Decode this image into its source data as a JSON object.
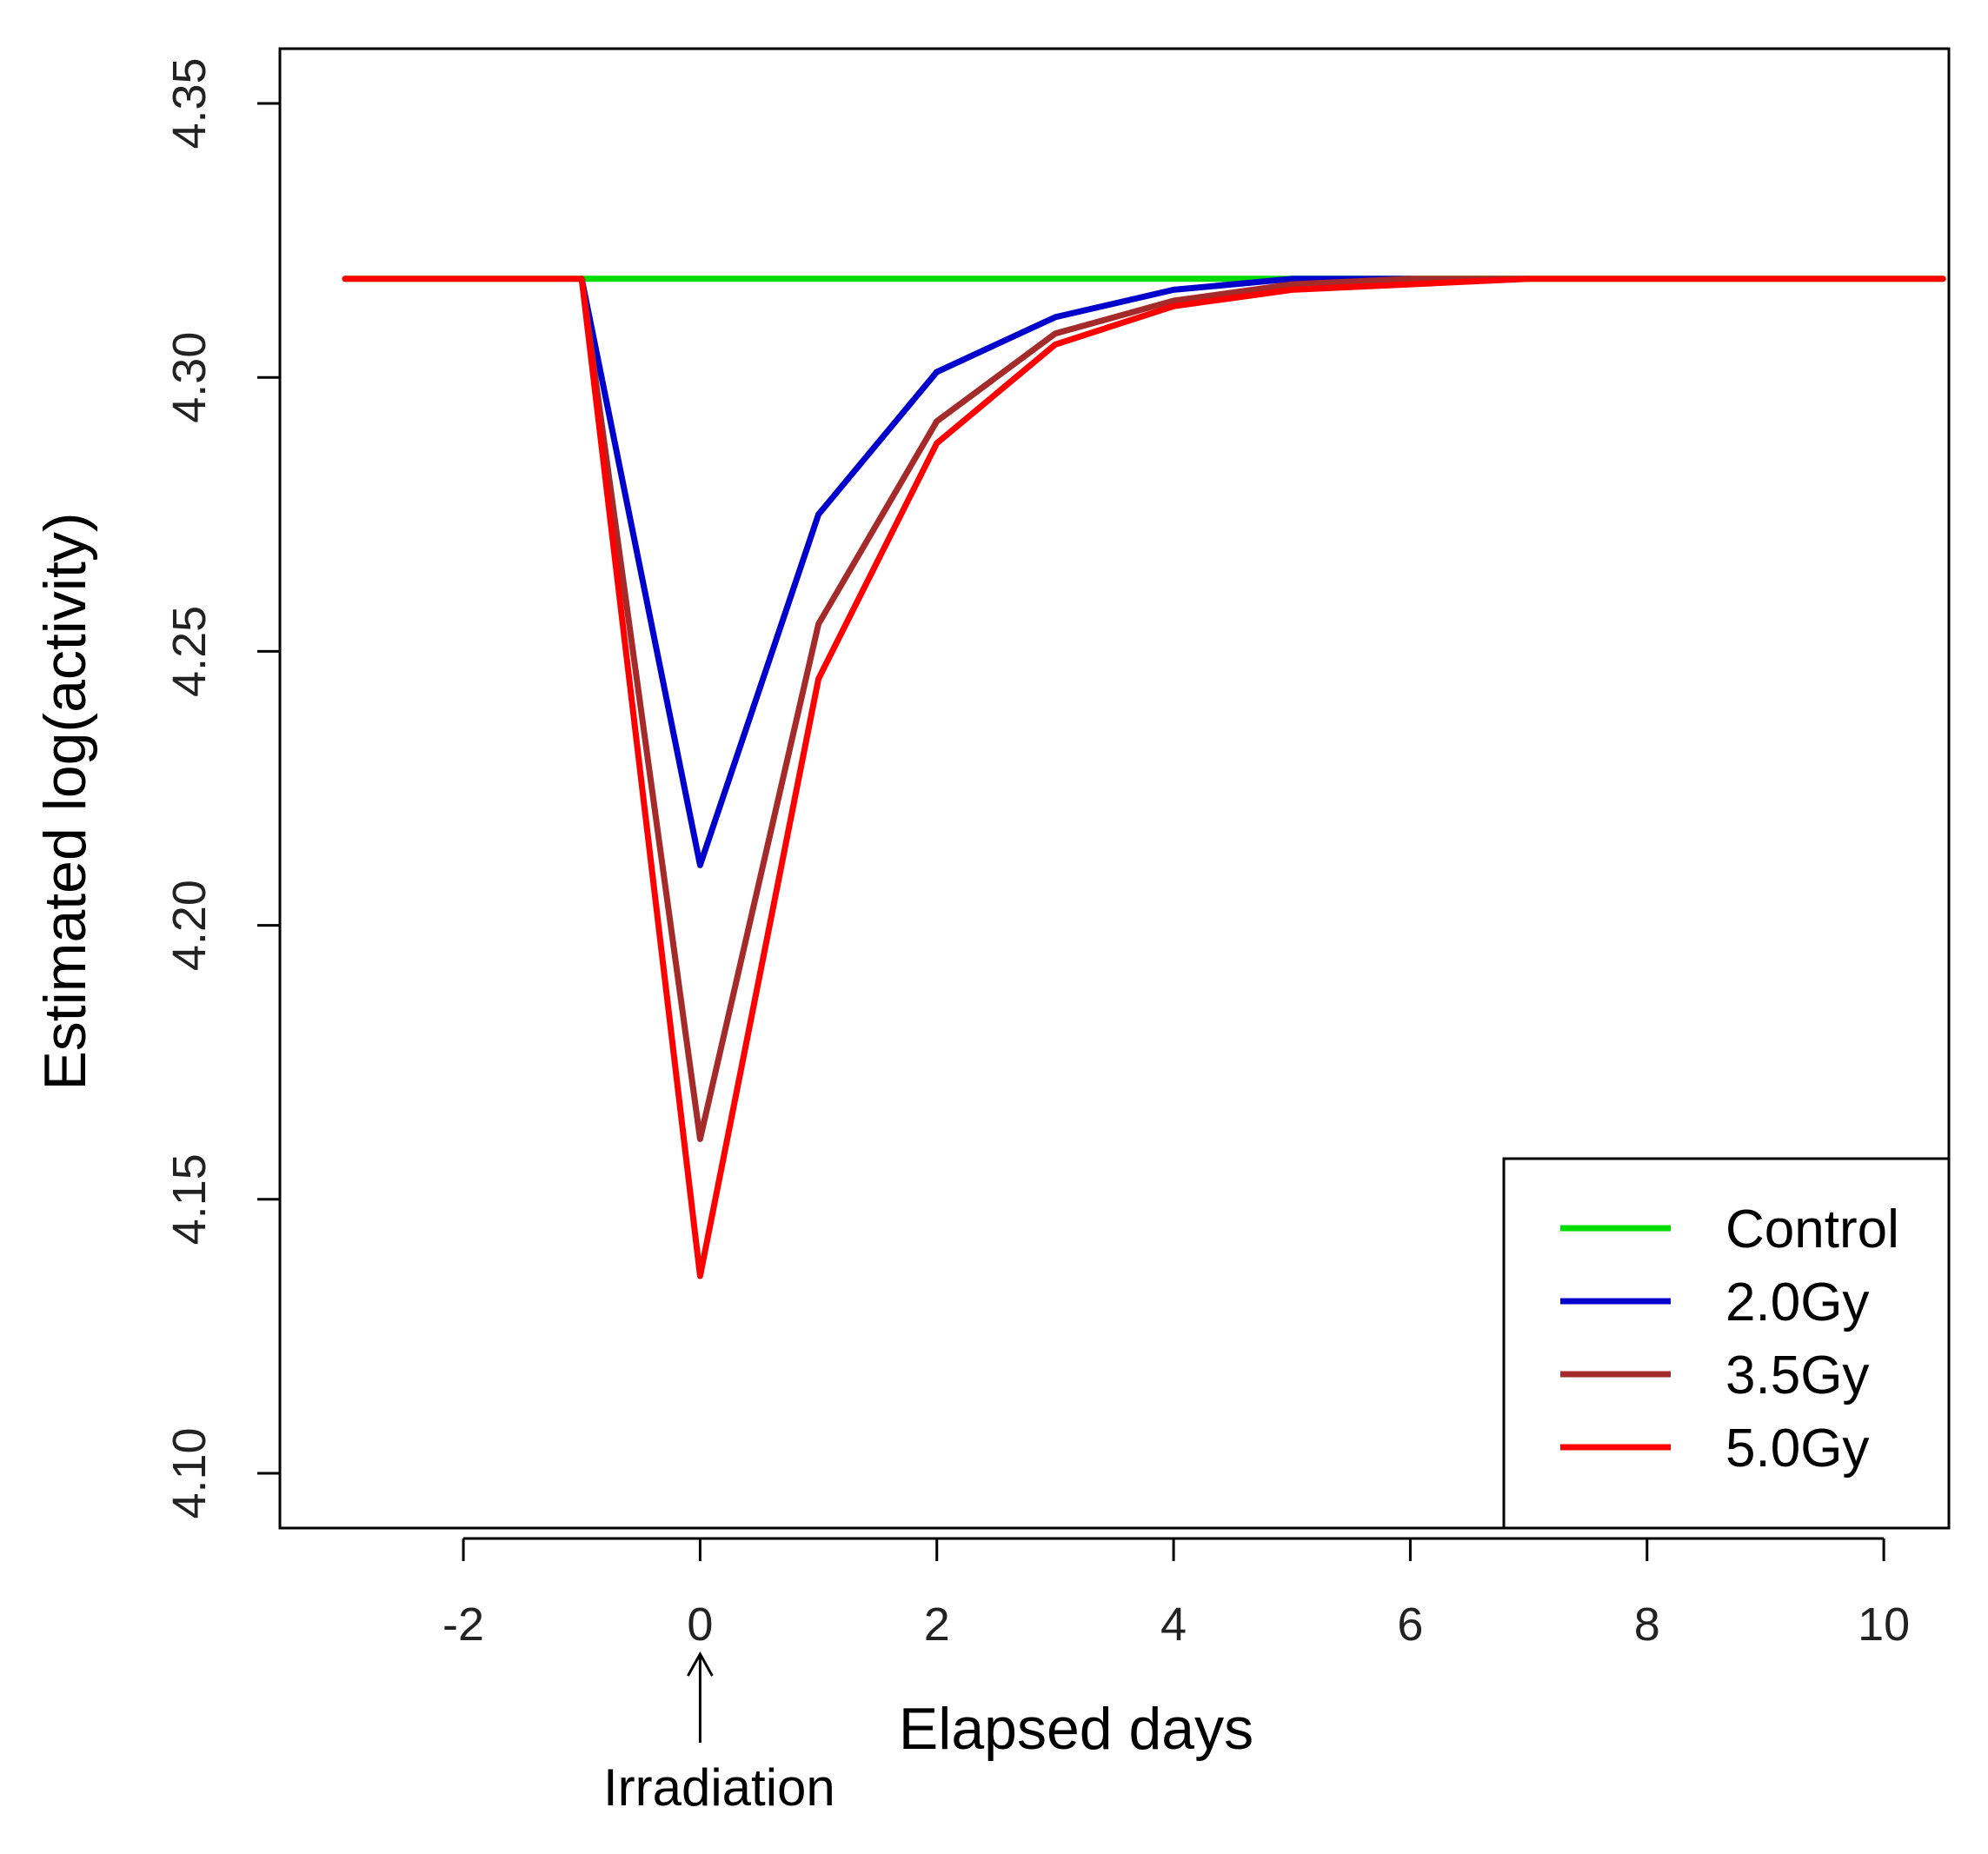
{
  "chart_data": {
    "type": "line",
    "title": "",
    "xlabel": "Elapsed days",
    "ylabel": "Estimated log(activity)",
    "xlim": [
      -3.55,
      10.55
    ],
    "ylim": [
      4.09,
      4.36
    ],
    "xticks": [
      -2,
      0,
      2,
      4,
      6,
      8,
      10
    ],
    "xtick_labels": [
      "-2",
      "0",
      "2",
      "4",
      "6",
      "8",
      "10"
    ],
    "yticks": [
      4.1,
      4.15,
      4.2,
      4.25,
      4.3,
      4.35
    ],
    "ytick_labels": [
      "4.10",
      "4.15",
      "4.20",
      "4.25",
      "4.30",
      "4.35"
    ],
    "grid": false,
    "legend_position": "bottom-right",
    "annotation": {
      "text": "Irradiation",
      "x": 0
    },
    "series": [
      {
        "name": "Control",
        "color": "#00dd00",
        "x": [
          -3,
          -2,
          -1,
          0,
          1,
          2,
          3,
          4,
          5,
          6,
          7,
          8,
          9,
          10,
          10.5
        ],
        "y": [
          4.318,
          4.318,
          4.318,
          4.318,
          4.318,
          4.318,
          4.318,
          4.318,
          4.318,
          4.318,
          4.318,
          4.318,
          4.318,
          4.318,
          4.318
        ]
      },
      {
        "name": "2.0Gy",
        "color": "#0000cc",
        "x": [
          -1,
          0,
          1,
          2,
          3,
          4,
          5,
          6
        ],
        "y": [
          4.318,
          4.211,
          4.275,
          4.301,
          4.311,
          4.316,
          4.318,
          4.318
        ]
      },
      {
        "name": "3.5Gy",
        "color": "#a52a2a",
        "x": [
          -1,
          0,
          1,
          2,
          3,
          4,
          5,
          6,
          7
        ],
        "y": [
          4.318,
          4.161,
          4.255,
          4.292,
          4.308,
          4.314,
          4.317,
          4.318,
          4.318
        ]
      },
      {
        "name": "5.0Gy",
        "color": "#ff0000",
        "x": [
          -3,
          -2,
          -1,
          0,
          1,
          2,
          3,
          4,
          5,
          6,
          7,
          8,
          9,
          10,
          10.5
        ],
        "y": [
          4.318,
          4.318,
          4.318,
          4.136,
          4.245,
          4.288,
          4.306,
          4.313,
          4.316,
          4.317,
          4.318,
          4.318,
          4.318,
          4.318,
          4.318
        ]
      }
    ]
  }
}
